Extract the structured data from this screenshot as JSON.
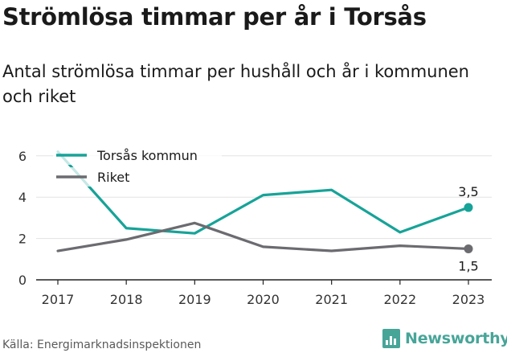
{
  "title": "Strömlösa timmar per år i Torsås",
  "subtitle": "Antal strömlösa timmar per hushåll och år i kommunen och riket",
  "source": "Källa: Energimarknadsinspektionen",
  "brand": {
    "name": "Newsworthy",
    "icon": "bar-chart-logo-icon",
    "color": "#47a598"
  },
  "chart_data": {
    "type": "line",
    "x": [
      "2017",
      "2018",
      "2019",
      "2020",
      "2021",
      "2022",
      "2023"
    ],
    "yticks": [
      "0",
      "2",
      "4",
      "6"
    ],
    "ylim": [
      0,
      6.4
    ],
    "grid": true,
    "legend_position": "top-left",
    "series": [
      {
        "name": "Torsås kommun",
        "color": "#17a398",
        "values": [
          6.2,
          2.5,
          2.25,
          4.1,
          4.35,
          2.3,
          3.5
        ]
      },
      {
        "name": "Riket",
        "color": "#6b6b70",
        "values": [
          1.4,
          1.95,
          2.75,
          1.6,
          1.4,
          1.65,
          1.5
        ]
      }
    ],
    "end_labels": [
      "3,5",
      "1,5"
    ]
  }
}
